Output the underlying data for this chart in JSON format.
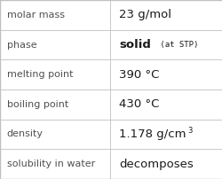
{
  "rows": [
    {
      "label": "molar mass",
      "value": "23 g/mol",
      "type": "simple"
    },
    {
      "label": "phase",
      "value": "solid",
      "type": "phase",
      "sub": " (at STP)"
    },
    {
      "label": "melting point",
      "value": "390 °C",
      "type": "simple"
    },
    {
      "label": "boiling point",
      "value": "430 °C",
      "type": "simple"
    },
    {
      "label": "density",
      "value": "1.178 g/cm",
      "type": "super",
      "super": "3"
    },
    {
      "label": "solubility in water",
      "value": "decomposes",
      "type": "simple"
    }
  ],
  "col_split": 0.495,
  "background_color": "#ffffff",
  "border_color": "#c0c0c0",
  "label_color": "#505050",
  "value_color": "#1a1a1a",
  "label_fontsize": 8.0,
  "value_fontsize": 9.5,
  "sub_fontsize": 6.5,
  "super_fontsize": 6.0,
  "figwidth": 2.51,
  "figheight": 2.02,
  "dpi": 100
}
